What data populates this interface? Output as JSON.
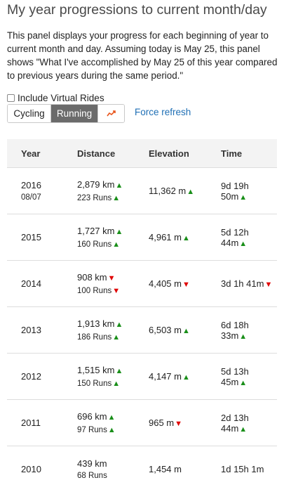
{
  "title": "My year progressions to current month/day",
  "description": "This panel displays your progress for each beginning of year to current month and day. Assuming today is May 25, this panel shows \"What I've accomplished by May 25 of this year compared to previous years during the same period.\"",
  "include_virtual_label": "Include Virtual Rides",
  "buttons": {
    "cycling": "Cycling",
    "running": "Running",
    "chart_icon": "trend-chart-icon"
  },
  "force_refresh": "Force refresh",
  "columns": [
    "Year",
    "Distance",
    "Elevation",
    "Time"
  ],
  "colors": {
    "up": "#1a8f1a",
    "down": "#e00000",
    "link": "#1f6fb5",
    "active_button": "#6b6b6b"
  },
  "rows": [
    {
      "year": "2016",
      "date": "08/07",
      "distance": "2,879 km",
      "distance_arrow": "▲",
      "count": "223 Runs",
      "count_arrow": "▲",
      "elevation": "11,362 m",
      "elevation_arrow": "▲",
      "time": "9d 19h 50m",
      "time_arrow": "▲"
    },
    {
      "year": "2015",
      "date": "",
      "distance": "1,727 km",
      "distance_arrow": "▲",
      "count": "160 Runs",
      "count_arrow": "▲",
      "elevation": "4,961 m",
      "elevation_arrow": "▲",
      "time": "5d 12h 44m",
      "time_arrow": "▲"
    },
    {
      "year": "2014",
      "date": "",
      "distance": "908 km",
      "distance_arrow": "▼",
      "count": "100 Runs",
      "count_arrow": "▼",
      "elevation": "4,405 m",
      "elevation_arrow": "▼",
      "time": "3d 1h 41m",
      "time_arrow": "▼"
    },
    {
      "year": "2013",
      "date": "",
      "distance": "1,913 km",
      "distance_arrow": "▲",
      "count": "186 Runs",
      "count_arrow": "▲",
      "elevation": "6,503 m",
      "elevation_arrow": "▲",
      "time": "6d 18h 33m",
      "time_arrow": "▲"
    },
    {
      "year": "2012",
      "date": "",
      "distance": "1,515 km",
      "distance_arrow": "▲",
      "count": "150 Runs",
      "count_arrow": "▲",
      "elevation": "4,147 m",
      "elevation_arrow": "▲",
      "time": "5d 13h 45m",
      "time_arrow": "▲"
    },
    {
      "year": "2011",
      "date": "",
      "distance": "696 km",
      "distance_arrow": "▲",
      "count": "97 Runs",
      "count_arrow": "▲",
      "elevation": "965 m",
      "elevation_arrow": "▼",
      "time": "2d 13h 44m",
      "time_arrow": "▲"
    },
    {
      "year": "2010",
      "date": "",
      "distance": "439 km",
      "distance_arrow": "",
      "count": "68 Runs",
      "count_arrow": "",
      "elevation": "1,454 m",
      "elevation_arrow": "",
      "time": "1d 15h 1m",
      "time_arrow": ""
    }
  ]
}
